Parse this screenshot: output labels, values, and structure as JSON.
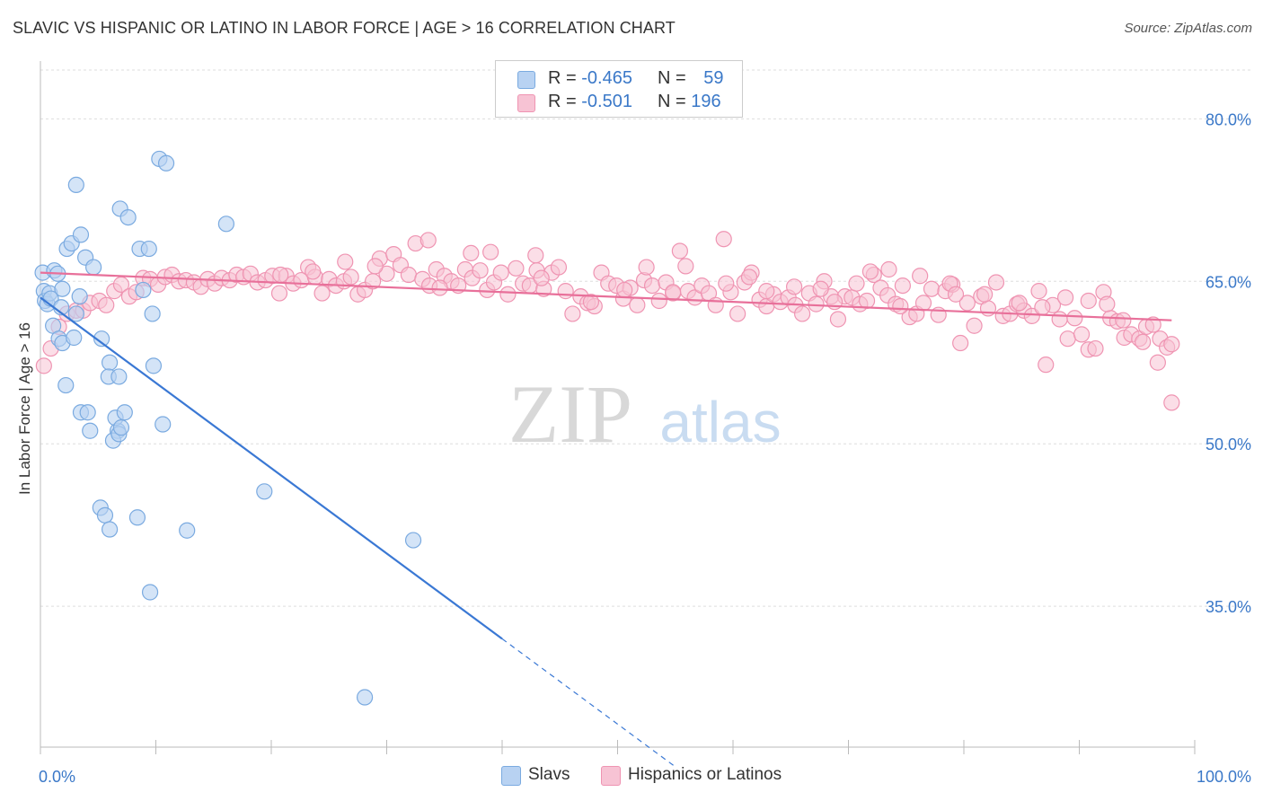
{
  "title": "SLAVIC VS HISPANIC OR LATINO IN LABOR FORCE | AGE > 16 CORRELATION CHART",
  "source": "Source: ZipAtlas.com",
  "watermark": {
    "zip": "ZIP",
    "atlas": "atlas"
  },
  "legend": {
    "rows": [
      {
        "r_label": "R = ",
        "r_value": "-0.465",
        "n_label": "N = ",
        "n_value": "59"
      },
      {
        "r_label": "R = ",
        "r_value": "-0.501",
        "n_label": "N = ",
        "n_value": "196"
      }
    ]
  },
  "bottom_legend": [
    "Slavs",
    "Hispanics or Latinos"
  ],
  "colors": {
    "blue_fill": "#b8d2f2",
    "blue_stroke": "#7aaae0",
    "blue_line": "#3a78d4",
    "pink_fill": "#f7c3d4",
    "pink_stroke": "#ef94b2",
    "pink_line": "#e8709a",
    "tick_label": "#3a78c8",
    "grid": "#dddddd"
  },
  "chart_data": {
    "type": "scatter",
    "title": "SLAVIC VS HISPANIC OR LATINO IN LABOR FORCE | AGE > 16 CORRELATION CHART",
    "xlabel": "",
    "ylabel": "In Labor Force | Age > 16",
    "xlim": [
      0,
      100
    ],
    "ylim": [
      22,
      85
    ],
    "x_tick_labels": [
      "0.0%",
      "100.0%"
    ],
    "y_ticks": [
      35,
      50,
      65,
      80
    ],
    "y_tick_labels": [
      "35.0%",
      "50.0%",
      "65.0%",
      "80.0%"
    ],
    "grid": true,
    "legend_position": "top-center",
    "series": [
      {
        "name": "Slavs",
        "R": -0.465,
        "N": 59,
        "trend": {
          "x0": 0,
          "y0": 63.5,
          "x1": 40,
          "y1": 32.0,
          "dashed_to_x": 55
        },
        "points": [
          [
            0.2,
            65.8
          ],
          [
            0.3,
            64.1
          ],
          [
            0.4,
            63.2
          ],
          [
            0.6,
            62.9
          ],
          [
            0.8,
            63.9
          ],
          [
            0.9,
            63.4
          ],
          [
            1.2,
            66.0
          ],
          [
            1.5,
            65.7
          ],
          [
            1.8,
            62.6
          ],
          [
            1.9,
            64.3
          ],
          [
            1.1,
            60.9
          ],
          [
            1.6,
            59.7
          ],
          [
            1.9,
            59.3
          ],
          [
            2.2,
            55.4
          ],
          [
            2.3,
            68.0
          ],
          [
            2.7,
            68.5
          ],
          [
            3.1,
            73.9
          ],
          [
            3.5,
            69.3
          ],
          [
            3.9,
            67.2
          ],
          [
            4.6,
            66.3
          ],
          [
            3.4,
            63.6
          ],
          [
            3.1,
            62.0
          ],
          [
            2.9,
            59.8
          ],
          [
            3.5,
            52.9
          ],
          [
            4.1,
            52.9
          ],
          [
            4.3,
            51.2
          ],
          [
            5.3,
            59.7
          ],
          [
            6.0,
            57.5
          ],
          [
            5.9,
            56.2
          ],
          [
            6.7,
            51.2
          ],
          [
            6.3,
            50.3
          ],
          [
            6.5,
            52.4
          ],
          [
            6.8,
            50.9
          ],
          [
            7.0,
            51.5
          ],
          [
            7.3,
            52.9
          ],
          [
            6.8,
            56.2
          ],
          [
            6.9,
            71.7
          ],
          [
            7.6,
            70.9
          ],
          [
            8.6,
            68.0
          ],
          [
            9.4,
            68.0
          ],
          [
            8.9,
            64.2
          ],
          [
            9.7,
            62.0
          ],
          [
            9.8,
            57.2
          ],
          [
            10.6,
            51.8
          ],
          [
            10.3,
            76.3
          ],
          [
            10.9,
            75.9
          ],
          [
            16.1,
            70.3
          ],
          [
            5.2,
            44.1
          ],
          [
            5.6,
            43.4
          ],
          [
            6.0,
            42.1
          ],
          [
            8.4,
            43.2
          ],
          [
            9.5,
            36.3
          ],
          [
            12.7,
            42.0
          ],
          [
            19.4,
            45.6
          ],
          [
            32.3,
            41.1
          ],
          [
            28.1,
            26.6
          ]
        ]
      },
      {
        "name": "Hispanics or Latinos",
        "R": -0.501,
        "N": 196,
        "trend": {
          "x0": 0,
          "y0": 65.8,
          "x1": 98,
          "y1": 61.4
        },
        "points": [
          [
            0.3,
            57.2
          ],
          [
            0.9,
            58.8
          ],
          [
            1.6,
            60.8
          ],
          [
            2.3,
            62.0
          ],
          [
            3.1,
            62.3
          ],
          [
            3.7,
            62.3
          ],
          [
            4.3,
            63.0
          ],
          [
            5.1,
            63.2
          ],
          [
            5.7,
            62.8
          ],
          [
            6.4,
            64.1
          ],
          [
            7.0,
            64.7
          ],
          [
            7.7,
            63.6
          ],
          [
            8.3,
            64.0
          ],
          [
            8.9,
            65.3
          ],
          [
            9.5,
            65.2
          ],
          [
            10.2,
            64.7
          ],
          [
            10.8,
            65.4
          ],
          [
            11.4,
            65.6
          ],
          [
            12.0,
            65.0
          ],
          [
            12.6,
            65.1
          ],
          [
            13.3,
            64.9
          ],
          [
            13.9,
            64.5
          ],
          [
            14.5,
            65.2
          ],
          [
            15.1,
            64.8
          ],
          [
            15.7,
            65.3
          ],
          [
            16.4,
            65.1
          ],
          [
            17.0,
            65.6
          ],
          [
            17.6,
            65.4
          ],
          [
            18.2,
            65.7
          ],
          [
            18.8,
            64.9
          ],
          [
            19.5,
            65.1
          ],
          [
            20.1,
            65.5
          ],
          [
            20.7,
            63.9
          ],
          [
            21.3,
            65.5
          ],
          [
            21.9,
            64.8
          ],
          [
            22.6,
            65.1
          ],
          [
            23.2,
            66.3
          ],
          [
            23.8,
            65.4
          ],
          [
            24.4,
            63.9
          ],
          [
            25.0,
            65.2
          ],
          [
            25.6,
            64.6
          ],
          [
            26.3,
            65.0
          ],
          [
            26.9,
            65.4
          ],
          [
            27.5,
            63.8
          ],
          [
            28.1,
            64.2
          ],
          [
            28.8,
            65.0
          ],
          [
            29.4,
            67.1
          ],
          [
            30.0,
            65.7
          ],
          [
            30.6,
            67.5
          ],
          [
            31.2,
            66.5
          ],
          [
            31.9,
            65.6
          ],
          [
            32.5,
            68.5
          ],
          [
            33.1,
            65.2
          ],
          [
            33.7,
            64.6
          ],
          [
            34.3,
            66.1
          ],
          [
            35.0,
            65.5
          ],
          [
            35.6,
            65.0
          ],
          [
            36.2,
            64.6
          ],
          [
            36.8,
            66.1
          ],
          [
            37.4,
            65.3
          ],
          [
            38.1,
            66.0
          ],
          [
            38.7,
            64.2
          ],
          [
            39.3,
            64.9
          ],
          [
            39.9,
            65.8
          ],
          [
            40.5,
            63.8
          ],
          [
            41.2,
            66.2
          ],
          [
            41.8,
            64.8
          ],
          [
            42.4,
            64.6
          ],
          [
            43.0,
            66.0
          ],
          [
            43.6,
            64.3
          ],
          [
            44.3,
            65.8
          ],
          [
            44.9,
            66.3
          ],
          [
            45.5,
            64.1
          ],
          [
            46.1,
            62.0
          ],
          [
            46.8,
            63.6
          ],
          [
            47.4,
            63.0
          ],
          [
            48.0,
            62.7
          ],
          [
            48.6,
            65.8
          ],
          [
            49.2,
            64.8
          ],
          [
            49.9,
            64.6
          ],
          [
            50.5,
            63.4
          ],
          [
            51.1,
            64.4
          ],
          [
            51.7,
            62.8
          ],
          [
            52.3,
            65.1
          ],
          [
            53.0,
            64.6
          ],
          [
            53.6,
            63.2
          ],
          [
            54.2,
            64.9
          ],
          [
            54.8,
            63.9
          ],
          [
            55.4,
            67.8
          ],
          [
            56.1,
            64.1
          ],
          [
            56.7,
            63.5
          ],
          [
            57.3,
            64.6
          ],
          [
            57.9,
            63.9
          ],
          [
            58.5,
            62.8
          ],
          [
            59.2,
            68.9
          ],
          [
            59.8,
            64.0
          ],
          [
            60.4,
            62.0
          ],
          [
            61.0,
            64.9
          ],
          [
            61.6,
            65.8
          ],
          [
            62.3,
            63.3
          ],
          [
            62.9,
            62.7
          ],
          [
            63.5,
            63.8
          ],
          [
            64.1,
            63.1
          ],
          [
            64.8,
            63.5
          ],
          [
            65.4,
            62.8
          ],
          [
            66.0,
            62.0
          ],
          [
            66.6,
            63.9
          ],
          [
            67.2,
            62.9
          ],
          [
            67.9,
            65.0
          ],
          [
            68.5,
            63.6
          ],
          [
            69.1,
            61.5
          ],
          [
            69.7,
            63.6
          ],
          [
            70.3,
            63.5
          ],
          [
            71.0,
            62.9
          ],
          [
            71.6,
            63.2
          ],
          [
            72.2,
            65.6
          ],
          [
            72.8,
            64.4
          ],
          [
            73.4,
            63.7
          ],
          [
            74.1,
            62.9
          ],
          [
            74.7,
            64.6
          ],
          [
            75.3,
            61.7
          ],
          [
            75.9,
            62.0
          ],
          [
            76.5,
            63.0
          ],
          [
            77.2,
            64.3
          ],
          [
            77.8,
            61.9
          ],
          [
            78.4,
            64.1
          ],
          [
            79.0,
            64.7
          ],
          [
            79.7,
            59.3
          ],
          [
            80.3,
            63.0
          ],
          [
            80.9,
            60.9
          ],
          [
            81.5,
            63.6
          ],
          [
            82.1,
            62.5
          ],
          [
            82.8,
            64.9
          ],
          [
            83.4,
            61.8
          ],
          [
            84.0,
            62.0
          ],
          [
            84.6,
            62.9
          ],
          [
            85.2,
            62.3
          ],
          [
            85.9,
            61.8
          ],
          [
            86.5,
            64.1
          ],
          [
            87.1,
            57.3
          ],
          [
            87.7,
            62.8
          ],
          [
            88.3,
            61.5
          ],
          [
            89.0,
            59.7
          ],
          [
            89.6,
            61.6
          ],
          [
            90.2,
            60.1
          ],
          [
            90.8,
            58.7
          ],
          [
            91.4,
            58.8
          ],
          [
            92.1,
            64.0
          ],
          [
            92.7,
            61.6
          ],
          [
            93.3,
            61.3
          ],
          [
            93.9,
            59.8
          ],
          [
            94.5,
            60.1
          ],
          [
            95.2,
            59.7
          ],
          [
            95.8,
            60.8
          ],
          [
            96.4,
            61.0
          ],
          [
            97.0,
            59.7
          ],
          [
            97.6,
            58.9
          ],
          [
            98.0,
            53.8
          ],
          [
            33.6,
            68.8
          ],
          [
            39.0,
            67.7
          ],
          [
            42.9,
            67.4
          ],
          [
            52.5,
            66.3
          ],
          [
            54.8,
            64.0
          ],
          [
            59.4,
            64.8
          ],
          [
            62.9,
            64.1
          ],
          [
            67.6,
            64.3
          ],
          [
            70.7,
            64.8
          ],
          [
            73.5,
            66.1
          ],
          [
            76.2,
            65.5
          ],
          [
            78.8,
            64.8
          ],
          [
            81.8,
            63.8
          ],
          [
            84.8,
            63.0
          ],
          [
            86.8,
            62.6
          ],
          [
            88.8,
            63.5
          ],
          [
            90.8,
            63.2
          ],
          [
            92.4,
            62.9
          ],
          [
            93.8,
            61.4
          ],
          [
            95.5,
            59.4
          ],
          [
            96.8,
            57.5
          ],
          [
            98.0,
            59.2
          ],
          [
            20.8,
            65.6
          ],
          [
            23.6,
            65.9
          ],
          [
            26.4,
            66.8
          ],
          [
            29.0,
            66.4
          ],
          [
            34.6,
            64.4
          ],
          [
            37.3,
            67.6
          ],
          [
            43.4,
            65.3
          ],
          [
            47.7,
            63.1
          ],
          [
            50.6,
            64.2
          ],
          [
            55.9,
            66.4
          ],
          [
            61.4,
            65.4
          ],
          [
            65.3,
            64.5
          ],
          [
            68.8,
            63.1
          ],
          [
            71.9,
            65.9
          ],
          [
            74.5,
            62.7
          ],
          [
            79.3,
            63.8
          ]
        ]
      }
    ]
  }
}
